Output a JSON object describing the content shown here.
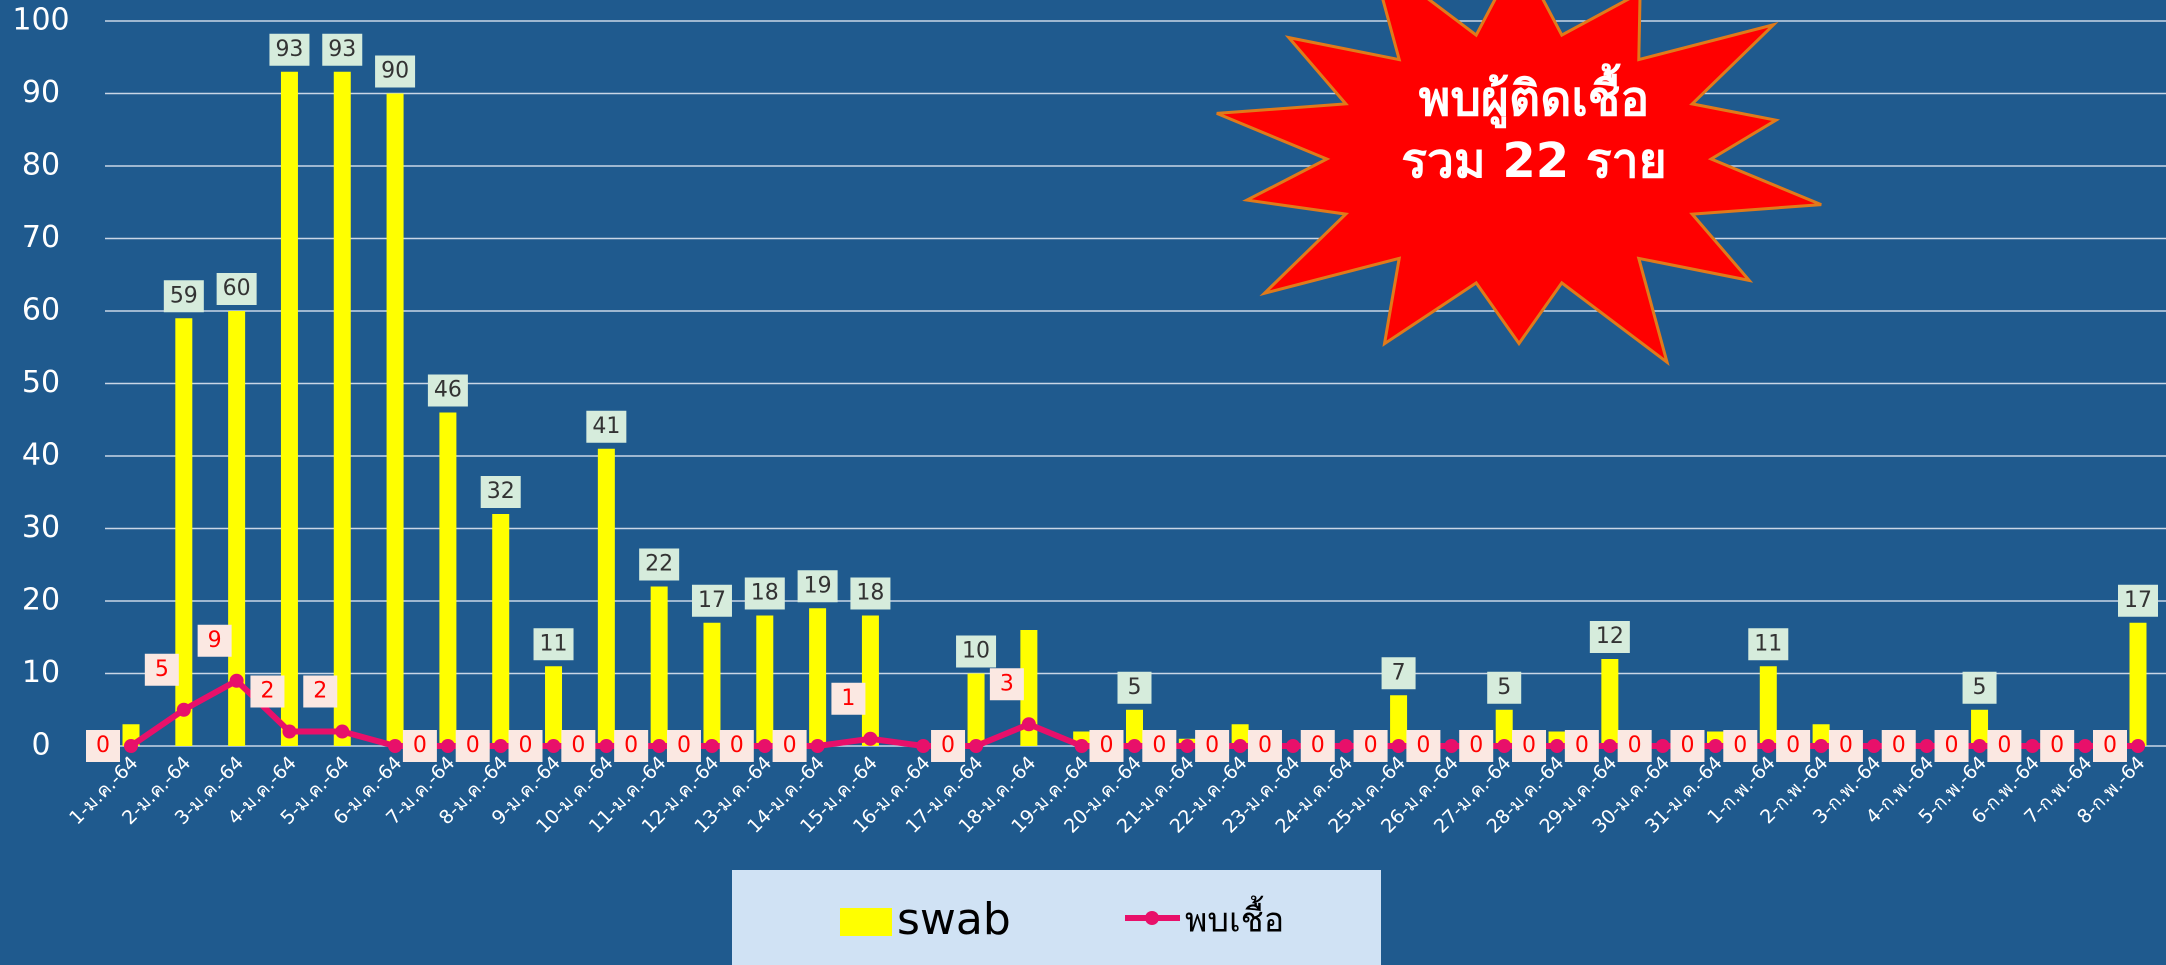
{
  "chart_data": {
    "type": "bar-line",
    "categories": [
      "1-ม.ค.-64",
      "2-ม.ค.-64",
      "3-ม.ค.-64",
      "4-ม.ค.-64",
      "5-ม.ค.-64",
      "6-ม.ค.-64",
      "7-ม.ค.-64",
      "8-ม.ค.-64",
      "9-ม.ค.-64",
      "10-ม.ค.-64",
      "11-ม.ค.-64",
      "12-ม.ค.-64",
      "13-ม.ค.-64",
      "14-ม.ค.-64",
      "15-ม.ค.-64",
      "16-ม.ค.-64",
      "17-ม.ค.-64",
      "18-ม.ค.-64",
      "19-ม.ค.-64",
      "20-ม.ค.-64",
      "21-ม.ค.-64",
      "22-ม.ค.-64",
      "23-ม.ค.-64",
      "24-ม.ค.-64",
      "25-ม.ค.-64",
      "26-ม.ค.-64",
      "27-ม.ค.-64",
      "28-ม.ค.-64",
      "29-ม.ค.-64",
      "30-ม.ค.-64",
      "31-ม.ค.-64",
      "1-ก.พ.-64",
      "2-ก.พ.-64",
      "3-ก.พ.-64",
      "4-ก.พ.-64",
      "5-ก.พ.-64",
      "6-ก.พ.-64",
      "7-ก.พ.-64",
      "8-ก.พ.-64"
    ],
    "series": [
      {
        "name": "swab",
        "type": "bar",
        "color": "#ffff00",
        "values": [
          3,
          59,
          60,
          93,
          93,
          90,
          46,
          32,
          11,
          41,
          22,
          17,
          18,
          19,
          18,
          0,
          10,
          16,
          2,
          5,
          1,
          3,
          0,
          0,
          7,
          0,
          5,
          2,
          12,
          0,
          2,
          11,
          3,
          0,
          0,
          5,
          0,
          0,
          17
        ],
        "value_labels": [
          null,
          "59",
          "60",
          "93",
          "93",
          "90",
          "46",
          "32",
          "11",
          "41",
          "22",
          "17",
          "18",
          "19",
          "18",
          null,
          "10",
          null,
          null,
          "5",
          null,
          null,
          null,
          null,
          "7",
          null,
          "5",
          null,
          "12",
          null,
          null,
          "11",
          null,
          null,
          null,
          "5",
          null,
          null,
          "17"
        ]
      },
      {
        "name": "พบเชื้อ",
        "type": "line",
        "color": "#e8106a",
        "values": [
          0,
          5,
          9,
          2,
          2,
          0,
          0,
          0,
          0,
          0,
          0,
          0,
          0,
          0,
          1,
          0,
          0,
          3,
          0,
          0,
          0,
          0,
          0,
          0,
          0,
          0,
          0,
          0,
          0,
          0,
          0,
          0,
          0,
          0,
          0,
          0,
          0,
          0,
          0
        ],
        "value_labels": [
          "0",
          "5",
          "9",
          "2",
          "2",
          null,
          "0",
          "0",
          "0",
          "0",
          "0",
          "0",
          "0",
          "0",
          "1",
          null,
          "0",
          "3",
          null,
          "0",
          "0",
          "0",
          "0",
          "0",
          "0",
          "0",
          "0",
          "0",
          "0",
          "0",
          "0",
          "0",
          "0",
          "0",
          "0",
          "0",
          "0",
          "0",
          "0"
        ]
      }
    ],
    "annotation": [
      "พบผู้ติดเชื้อ",
      "รวม 22 ราย"
    ],
    "ylim": [
      0,
      100
    ],
    "yticks": [
      0,
      10,
      20,
      30,
      40,
      50,
      60,
      70,
      80,
      90,
      100
    ],
    "grid": true
  }
}
